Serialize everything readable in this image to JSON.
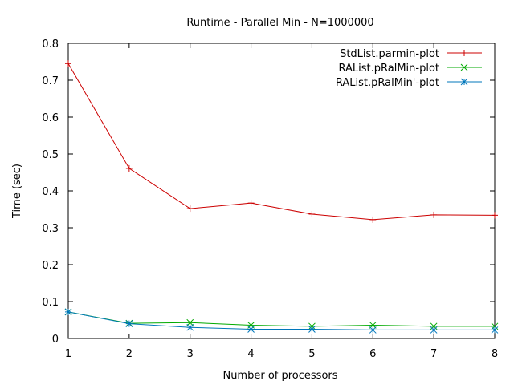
{
  "chart_data": {
    "type": "line",
    "title": "Runtime - Parallel Min - N=1000000",
    "xlabel": "Number of processors",
    "ylabel": "Time (sec)",
    "xlim": [
      1,
      8
    ],
    "ylim": [
      0,
      0.8
    ],
    "x_ticks": [
      1,
      2,
      3,
      4,
      5,
      6,
      7,
      8
    ],
    "y_ticks": [
      0,
      0.1,
      0.2,
      0.3,
      0.4,
      0.5,
      0.6,
      0.7,
      0.8
    ],
    "x_tick_labels": [
      "1",
      "2",
      "3",
      "4",
      "5",
      "6",
      "7",
      "8"
    ],
    "y_tick_labels": [
      "0",
      "0.1",
      "0.2",
      "0.3",
      "0.4",
      "0.5",
      "0.6",
      "0.7",
      "0.8"
    ],
    "grid": false,
    "legend_position": "top-right",
    "x": [
      1,
      2,
      3,
      4,
      5,
      6,
      7,
      8
    ],
    "series": [
      {
        "name": "StdList.parmin-plot",
        "color": "#cc0000",
        "marker": "plus",
        "values": [
          0.745,
          0.461,
          0.352,
          0.367,
          0.337,
          0.322,
          0.335,
          0.334
        ]
      },
      {
        "name": "RAList.pRalMin-plot",
        "color": "#00aa00",
        "marker": "cross",
        "values": [
          0.072,
          0.041,
          0.043,
          0.036,
          0.033,
          0.036,
          0.033,
          0.033
        ]
      },
      {
        "name": "RAList.pRalMin'-plot",
        "color": "#0077bb",
        "marker": "star",
        "values": [
          0.072,
          0.04,
          0.03,
          0.025,
          0.025,
          0.023,
          0.023,
          0.023
        ]
      }
    ]
  }
}
